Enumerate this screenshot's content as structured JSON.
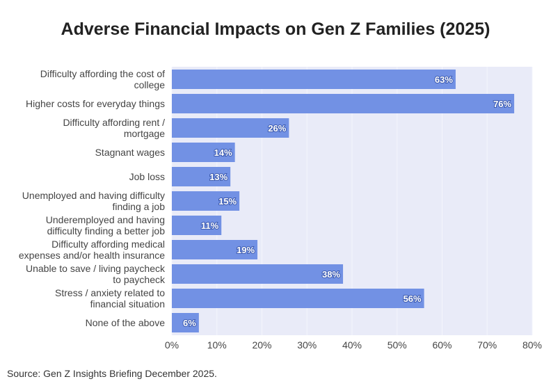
{
  "chart_data": {
    "type": "bar",
    "orientation": "horizontal",
    "title": "Adverse Financial Impacts on Gen Z Families (2025)",
    "categories": [
      [
        "Difficulty affording the cost of",
        "college"
      ],
      [
        "Higher costs for everyday things"
      ],
      [
        "Difficulty affording rent /",
        "mortgage"
      ],
      [
        "Stagnant wages"
      ],
      [
        "Job loss"
      ],
      [
        "Unemployed and having difficulty",
        "finding a job"
      ],
      [
        "Underemployed and having",
        "difficulty finding a better job"
      ],
      [
        "Difficulty affording medical",
        "expenses and/or health insurance"
      ],
      [
        "Unable to save / living paycheck",
        "to paycheck"
      ],
      [
        "Stress / anxiety related to",
        "financial situation"
      ],
      [
        "None of the above"
      ]
    ],
    "values": [
      63,
      76,
      26,
      14,
      13,
      15,
      11,
      19,
      38,
      56,
      6
    ],
    "data_labels": [
      "63%",
      "76%",
      "26%",
      "14%",
      "13%",
      "15%",
      "11%",
      "19%",
      "38%",
      "56%",
      "6%"
    ],
    "xlim": [
      0,
      80
    ],
    "xticks": [
      "0%",
      "10%",
      "20%",
      "30%",
      "40%",
      "50%",
      "60%",
      "70%",
      "80%"
    ],
    "grid": true,
    "colors": {
      "bar": "#7291e4",
      "plot_bg": "#e9ebf8",
      "label_outline": "#3d5bb0"
    }
  },
  "source": "Source: Gen Z Insights Briefing December 2025."
}
